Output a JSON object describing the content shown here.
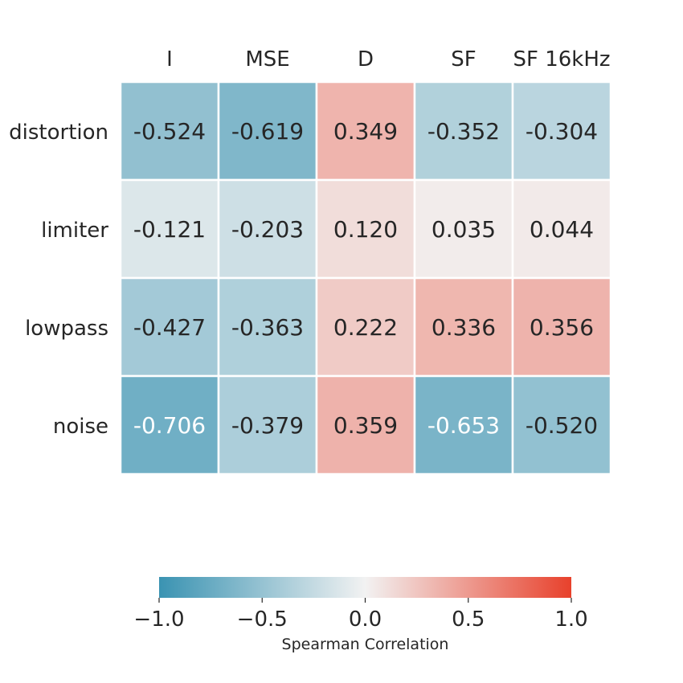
{
  "chart_data": {
    "type": "heatmap",
    "columns": [
      "I",
      "MSE",
      "D",
      "SF",
      "SF 16kHz"
    ],
    "rows": [
      "distortion",
      "limiter",
      "lowpass",
      "noise"
    ],
    "values": [
      [
        -0.524,
        -0.619,
        0.349,
        -0.352,
        -0.304
      ],
      [
        -0.121,
        -0.203,
        0.12,
        0.035,
        0.044
      ],
      [
        -0.427,
        -0.363,
        0.222,
        0.336,
        0.356
      ],
      [
        -0.706,
        -0.379,
        0.359,
        -0.653,
        -0.52
      ]
    ],
    "value_labels": [
      [
        "-0.524",
        "-0.619",
        "0.349",
        "-0.352",
        "-0.304"
      ],
      [
        "-0.121",
        "-0.203",
        "0.120",
        "0.035",
        "0.044"
      ],
      [
        "-0.427",
        "-0.363",
        "0.222",
        "0.336",
        "0.356"
      ],
      [
        "-0.706",
        "-0.379",
        "0.359",
        "-0.653",
        "-0.520"
      ]
    ],
    "colorbar": {
      "label": "Spearman Correlation",
      "range": [
        -1.0,
        1.0
      ],
      "ticks": [
        -1.0,
        -0.5,
        0.0,
        0.5,
        1.0
      ],
      "tick_labels": [
        "−1.0",
        "−0.5",
        "0.0",
        "0.5",
        "1.0"
      ],
      "orientation": "horizontal",
      "placement": "bottom"
    },
    "colors": {
      "negative_end": "#3a93b2",
      "center": "#f2f2f2",
      "positive_end": "#e8412c",
      "cell_border": "#ffffff",
      "dark_text": "#262626",
      "light_text": "#ffffff"
    }
  }
}
